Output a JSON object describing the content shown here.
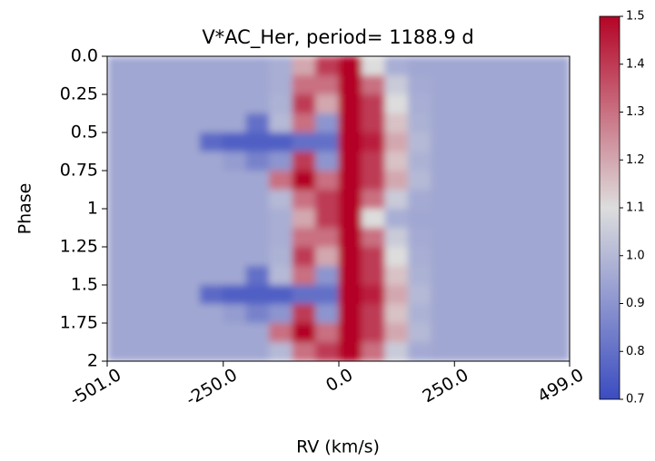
{
  "chart_data": {
    "type": "heatmap",
    "title": "V*AC_Her, period= 1188.9 d",
    "xlabel": "RV (km/s)",
    "ylabel": "Phase",
    "xlim": [
      -501,
      499
    ],
    "ylim": [
      0,
      2
    ],
    "y_inverted": true,
    "xticks": [
      {
        "value": -501,
        "label": "-501.0"
      },
      {
        "value": -250,
        "label": "-250.0"
      },
      {
        "value": 0,
        "label": "0.0"
      },
      {
        "value": 250,
        "label": "250.0"
      },
      {
        "value": 499,
        "label": "499.0"
      }
    ],
    "yticks": [
      {
        "value": 0,
        "label": "0.0"
      },
      0.25,
      0.5,
      0.75,
      1,
      1.25,
      1.5,
      1.75,
      2
    ],
    "xbins": [
      -501,
      -451,
      -401,
      -351,
      -301,
      -251,
      -201,
      -151,
      -101,
      -51,
      -1,
      49,
      99,
      149,
      199,
      249,
      299,
      349,
      399,
      449,
      499
    ],
    "ybins": [
      0,
      0.125,
      0.25,
      0.375,
      0.5,
      0.625,
      0.75,
      0.875,
      1,
      1.125,
      1.25,
      1.375,
      1.5,
      1.625,
      1.75,
      1.875,
      2
    ],
    "z": [
      [
        0.95,
        0.95,
        0.95,
        0.95,
        0.95,
        0.95,
        0.95,
        0.97,
        1.2,
        1.4,
        1.5,
        1.1,
        0.97,
        0.95,
        0.95,
        0.95,
        0.95,
        0.95,
        0.95,
        0.95
      ],
      [
        0.95,
        0.95,
        0.95,
        0.95,
        0.95,
        0.95,
        0.95,
        0.97,
        1.3,
        1.3,
        1.5,
        1.3,
        1.05,
        0.96,
        0.95,
        0.95,
        0.95,
        0.95,
        0.95,
        0.95
      ],
      [
        0.95,
        0.95,
        0.95,
        0.95,
        0.95,
        0.95,
        0.95,
        0.98,
        1.4,
        1.2,
        1.5,
        1.4,
        1.1,
        0.97,
        0.95,
        0.95,
        0.95,
        0.95,
        0.95,
        0.95
      ],
      [
        0.95,
        0.95,
        0.95,
        0.95,
        0.95,
        0.95,
        0.8,
        1.0,
        1.3,
        0.9,
        1.5,
        1.4,
        1.15,
        0.98,
        0.95,
        0.95,
        0.95,
        0.95,
        0.95,
        0.95
      ],
      [
        0.95,
        0.95,
        0.95,
        0.95,
        0.78,
        0.75,
        0.75,
        0.75,
        0.8,
        0.8,
        1.5,
        1.45,
        1.2,
        1.0,
        0.95,
        0.95,
        0.95,
        0.95,
        0.95,
        0.95
      ],
      [
        0.95,
        0.95,
        0.95,
        0.95,
        0.95,
        0.92,
        0.85,
        0.9,
        1.4,
        0.9,
        1.5,
        1.4,
        1.15,
        0.98,
        0.95,
        0.95,
        0.95,
        0.95,
        0.95,
        0.95
      ],
      [
        0.95,
        0.95,
        0.95,
        0.95,
        0.95,
        0.95,
        0.95,
        1.3,
        1.5,
        1.3,
        1.5,
        1.4,
        1.2,
        1.0,
        0.95,
        0.95,
        0.95,
        0.95,
        0.95,
        0.95
      ],
      [
        0.95,
        0.95,
        0.95,
        0.95,
        0.95,
        0.95,
        0.95,
        1.0,
        1.3,
        1.4,
        1.5,
        1.3,
        1.05,
        0.96,
        0.95,
        0.95,
        0.95,
        0.95,
        0.95,
        0.95
      ],
      [
        0.95,
        0.95,
        0.95,
        0.95,
        0.95,
        0.95,
        0.95,
        0.97,
        1.2,
        1.4,
        1.5,
        1.1,
        0.97,
        0.95,
        0.95,
        0.95,
        0.95,
        0.95,
        0.95,
        0.95
      ],
      [
        0.95,
        0.95,
        0.95,
        0.95,
        0.95,
        0.95,
        0.95,
        0.97,
        1.3,
        1.3,
        1.5,
        1.3,
        1.05,
        0.96,
        0.95,
        0.95,
        0.95,
        0.95,
        0.95,
        0.95
      ],
      [
        0.95,
        0.95,
        0.95,
        0.95,
        0.95,
        0.95,
        0.95,
        0.98,
        1.4,
        1.2,
        1.5,
        1.4,
        1.1,
        0.97,
        0.95,
        0.95,
        0.95,
        0.95,
        0.95,
        0.95
      ],
      [
        0.95,
        0.95,
        0.95,
        0.95,
        0.95,
        0.95,
        0.8,
        1.0,
        1.3,
        0.9,
        1.5,
        1.4,
        1.15,
        0.98,
        0.95,
        0.95,
        0.95,
        0.95,
        0.95,
        0.95
      ],
      [
        0.95,
        0.95,
        0.95,
        0.95,
        0.78,
        0.75,
        0.75,
        0.75,
        0.8,
        0.8,
        1.5,
        1.45,
        1.2,
        1.0,
        0.95,
        0.95,
        0.95,
        0.95,
        0.95,
        0.95
      ],
      [
        0.95,
        0.95,
        0.95,
        0.95,
        0.95,
        0.92,
        0.85,
        0.9,
        1.4,
        0.9,
        1.5,
        1.4,
        1.15,
        0.98,
        0.95,
        0.95,
        0.95,
        0.95,
        0.95,
        0.95
      ],
      [
        0.95,
        0.95,
        0.95,
        0.95,
        0.95,
        0.95,
        0.95,
        1.3,
        1.5,
        1.3,
        1.5,
        1.4,
        1.2,
        1.0,
        0.95,
        0.95,
        0.95,
        0.95,
        0.95,
        0.95
      ],
      [
        0.95,
        0.95,
        0.95,
        0.95,
        0.95,
        0.95,
        0.95,
        1.0,
        1.3,
        1.4,
        1.5,
        1.3,
        1.05,
        0.96,
        0.95,
        0.95,
        0.95,
        0.95,
        0.95,
        0.95
      ]
    ],
    "clim": [
      0.7,
      1.5
    ],
    "cticks": [
      0.7,
      0.8,
      0.9,
      {
        "value": 1,
        "label": "1.0"
      },
      1.1,
      1.2,
      1.3,
      1.4,
      1.5
    ],
    "colormap_colors": [
      "#3b4cc0",
      "#dddddd",
      "#b40426"
    ]
  }
}
